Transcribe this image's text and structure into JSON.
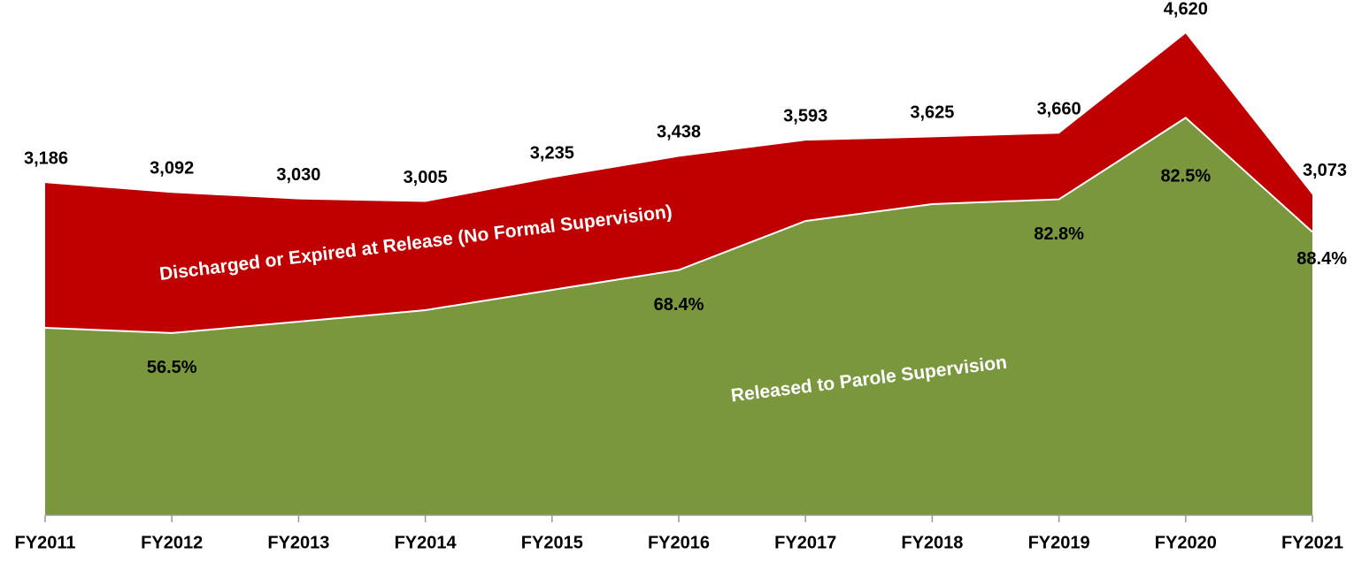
{
  "chart_data": {
    "type": "stacked-area",
    "categories": [
      "FY2011",
      "FY2012",
      "FY2013",
      "FY2014",
      "FY2015",
      "FY2016",
      "FY2017",
      "FY2018",
      "FY2019",
      "FY2020",
      "FY2021"
    ],
    "series": [
      {
        "name": "Released to Parole Supervision",
        "color": "#7a973e",
        "values": [
          1797,
          1747,
          1856,
          1967,
          2161,
          2352,
          2822,
          2984,
          3030,
          3812,
          2717
        ]
      },
      {
        "name": "Discharged or Expired at Release (No Formal Supervision)",
        "color": "#c00000",
        "values": [
          1389,
          1345,
          1174,
          1038,
          1074,
          1086,
          771,
          641,
          630,
          808,
          356
        ]
      }
    ],
    "totals": [
      3186,
      3092,
      3030,
      3005,
      3235,
      3438,
      3593,
      3625,
      3660,
      4620,
      3073
    ],
    "total_labels": [
      "3,186",
      "3,092",
      "3,030",
      "3,005",
      "3,235",
      "3,438",
      "3,593",
      "3,625",
      "3,660",
      "4,620",
      "3,073"
    ],
    "share_labels": [
      null,
      "56.5%",
      null,
      null,
      null,
      "68.4%",
      null,
      null,
      "82.8%",
      "82.5%",
      "88.4%"
    ]
  }
}
